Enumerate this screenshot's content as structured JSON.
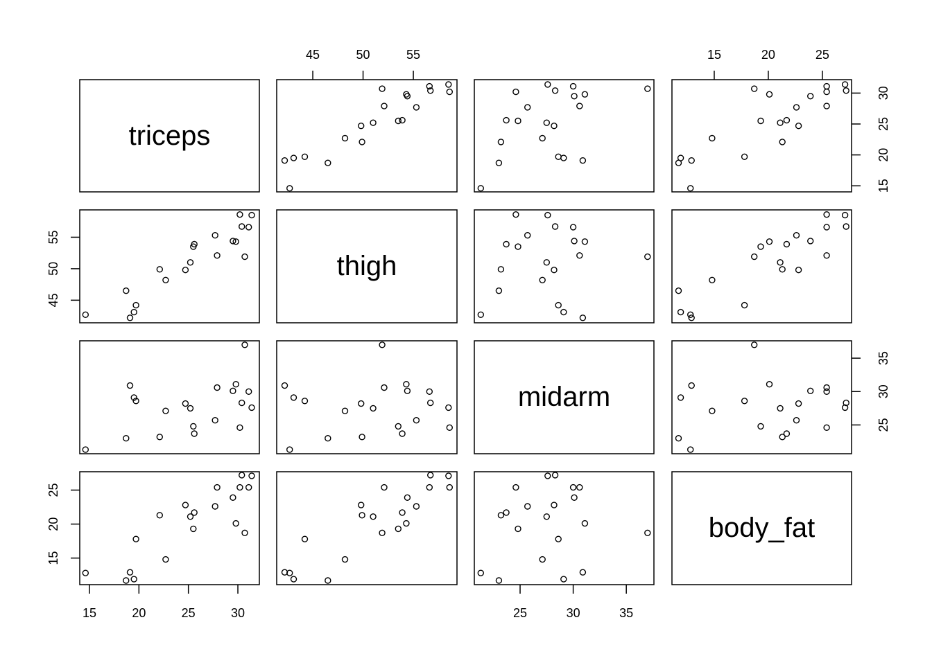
{
  "chart_data": {
    "type": "scatter",
    "title": "",
    "layout": "pairs-matrix",
    "variables": [
      "triceps",
      "thigh",
      "midarm",
      "body_fat"
    ],
    "axis_ranges": {
      "triceps": [
        14.02,
        32.17
      ],
      "thigh": [
        41.41,
        59.34
      ],
      "midarm": [
        20.69,
        37.6
      ],
      "body_fat": [
        11.09,
        27.7
      ]
    },
    "tick_labels": {
      "triceps": [
        15,
        20,
        25,
        30
      ],
      "thigh": [
        45,
        50,
        55
      ],
      "midarm": [
        25,
        30,
        35
      ],
      "body_fat": [
        15,
        20,
        25
      ]
    },
    "grid": false,
    "legend": "none",
    "data": {
      "triceps": [
        19.5,
        24.7,
        30.7,
        29.8,
        19.1,
        25.6,
        31.4,
        27.9,
        22.1,
        25.5,
        31.1,
        30.4,
        18.7,
        19.7,
        14.6,
        29.5,
        27.7,
        30.2,
        22.7,
        25.2
      ],
      "thigh": [
        43.1,
        49.8,
        51.9,
        54.3,
        42.2,
        53.9,
        58.5,
        52.1,
        49.9,
        53.5,
        56.6,
        56.7,
        46.5,
        44.2,
        42.7,
        54.4,
        55.3,
        58.6,
        48.2,
        51.0
      ],
      "midarm": [
        29.1,
        28.2,
        37.0,
        31.1,
        30.9,
        23.7,
        27.6,
        30.6,
        23.2,
        24.8,
        30.0,
        28.3,
        23.0,
        28.6,
        21.3,
        30.1,
        25.7,
        24.6,
        27.1,
        27.5
      ],
      "body_fat": [
        11.9,
        22.8,
        18.7,
        20.1,
        12.9,
        21.7,
        27.1,
        25.4,
        21.3,
        19.3,
        25.4,
        27.2,
        11.7,
        17.8,
        12.8,
        23.9,
        22.6,
        25.4,
        14.8,
        21.1
      ]
    }
  },
  "labels": {
    "triceps": "triceps",
    "thigh": "thigh",
    "midarm": "midarm",
    "body_fat": "body_fat"
  }
}
